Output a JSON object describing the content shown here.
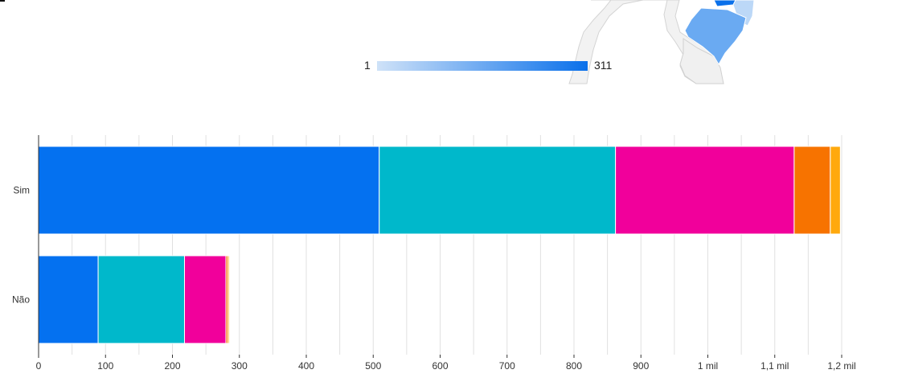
{
  "map": {
    "legend_min": "1",
    "legend_max": "311",
    "gradient_start": "#cfe2f8",
    "gradient_end": "#0a70ea"
  },
  "chart_data": {
    "type": "bar",
    "orientation": "horizontal",
    "stacked": true,
    "categories": [
      "Sim",
      "Não"
    ],
    "series": [
      {
        "color": "#0471f0",
        "values": [
          509,
          89
        ]
      },
      {
        "color": "#00b8cb",
        "values": [
          353,
          129
        ]
      },
      {
        "color": "#f1009b",
        "values": [
          267,
          62
        ]
      },
      {
        "color": "#f77300",
        "values": [
          54,
          3
        ]
      },
      {
        "color": "#ffa90d",
        "values": [
          15,
          2
        ]
      }
    ],
    "xlim": [
      0,
      1200
    ],
    "x_ticks": [
      0,
      100,
      200,
      300,
      400,
      500,
      600,
      700,
      800,
      900,
      1000,
      1100,
      1200
    ],
    "x_tick_labels": [
      "0",
      "100",
      "200",
      "300",
      "400",
      "500",
      "600",
      "700",
      "800",
      "900",
      "1 mil",
      "1,1 mil",
      "1,2 mil"
    ],
    "grid": true,
    "title": "",
    "xlabel": "",
    "ylabel": ""
  }
}
